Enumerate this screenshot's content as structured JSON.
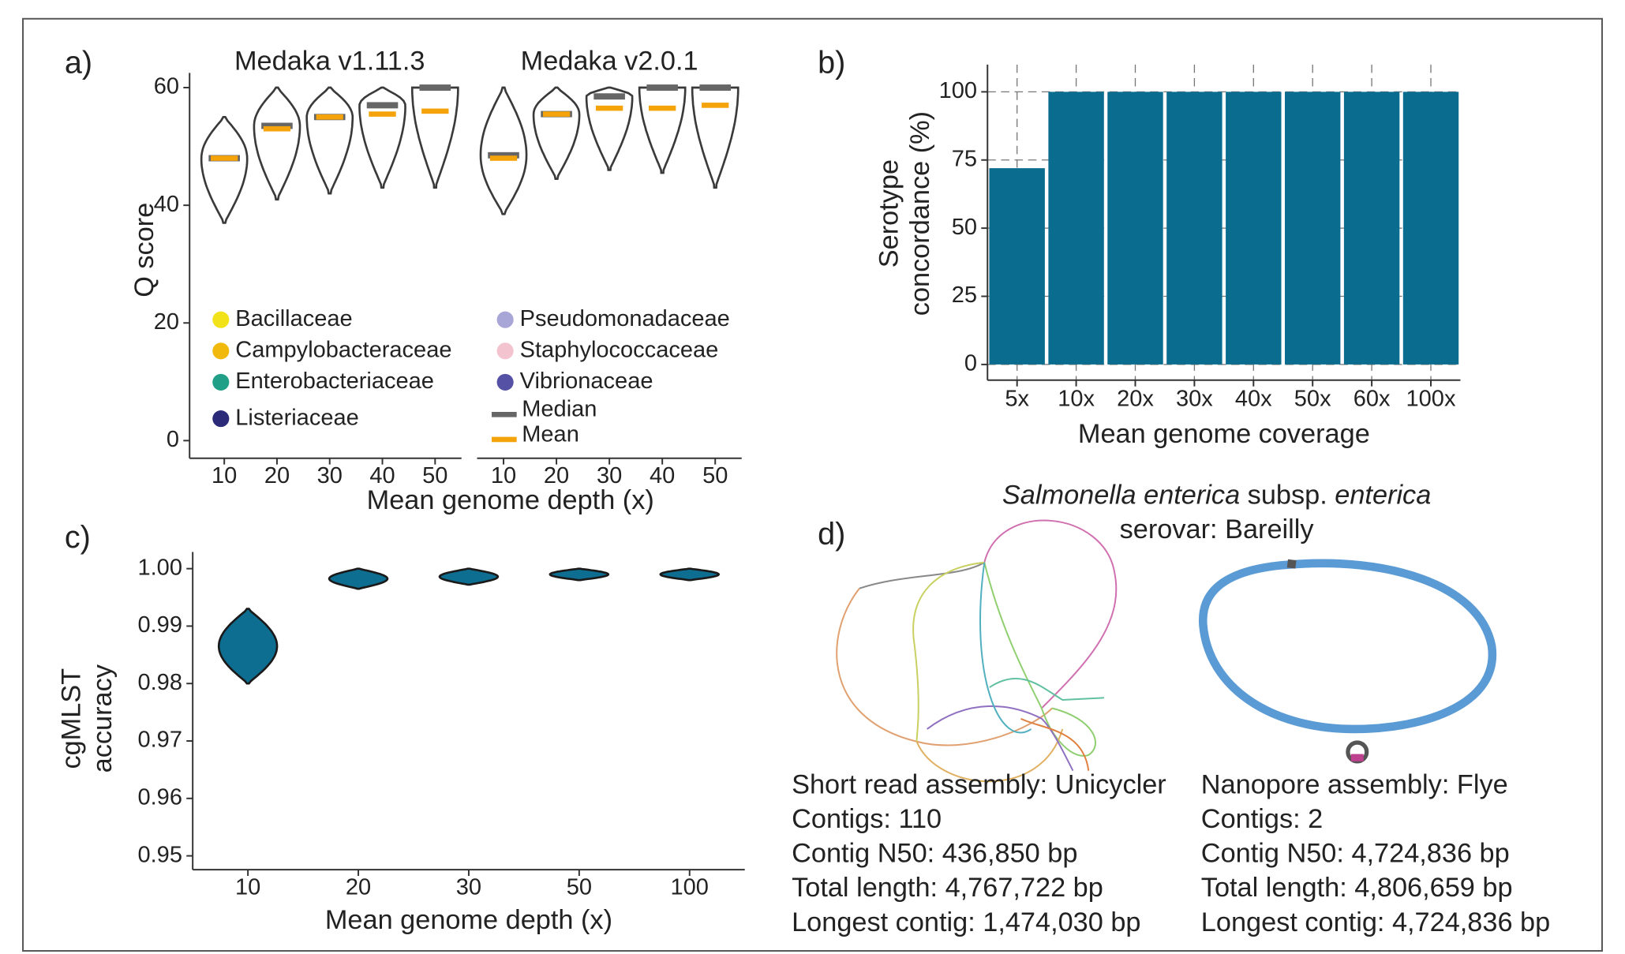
{
  "chart_data": [
    {
      "type": "violin",
      "panel_label": "a)",
      "facets": [
        {
          "title": "Medaka v1.11.3",
          "categories": [
            "10",
            "20",
            "30",
            "40",
            "50"
          ],
          "min": [
            37,
            41,
            42,
            43,
            43
          ],
          "max": [
            55,
            60,
            60,
            60,
            60
          ],
          "median": [
            48,
            53.5,
            55,
            57,
            60
          ],
          "mean": [
            48,
            53,
            55,
            55.5,
            56
          ]
        },
        {
          "title": "Medaka v2.0.1",
          "categories": [
            "10",
            "20",
            "30",
            "40",
            "50"
          ],
          "min": [
            38.5,
            44.5,
            46,
            45.5,
            43
          ],
          "max": [
            60,
            60,
            60,
            60,
            60
          ],
          "median": [
            48.5,
            55.5,
            58.5,
            60,
            60
          ],
          "mean": [
            48,
            55.5,
            56.5,
            56.5,
            57
          ]
        }
      ],
      "xlabel": "Mean genome depth (x)",
      "ylabel": "Q score",
      "ylim": [
        -3,
        62.5
      ],
      "yticks": [
        0,
        20,
        40,
        60
      ],
      "outline_color": "#3a3a3a",
      "legend": {
        "families": [
          {
            "name": "Bacillaceae",
            "color": "#f2e21a"
          },
          {
            "name": "Campylobacteraceae",
            "color": "#f0b90c"
          },
          {
            "name": "Enterobacteriaceae",
            "color": "#21a087"
          },
          {
            "name": "Listeriaceae",
            "color": "#2b2a78"
          },
          {
            "name": "Pseudomonadaceae",
            "color": "#a7a6d6"
          },
          {
            "name": "Staphylococcaceae",
            "color": "#f3c3cf"
          },
          {
            "name": "Vibrionaceae",
            "color": "#5552a6"
          }
        ],
        "median": {
          "name": "Median",
          "color": "#666666"
        },
        "mean": {
          "name": "Mean",
          "color": "#f5a30a"
        }
      }
    },
    {
      "type": "bar",
      "panel_label": "b)",
      "categories": [
        "5x",
        "10x",
        "20x",
        "30x",
        "40x",
        "50x",
        "60x",
        "100x"
      ],
      "values": [
        72,
        100,
        100,
        100,
        100,
        100,
        100,
        100
      ],
      "color": "#0a6d8f",
      "xlabel": "Mean genome coverage",
      "ylabel": [
        "Serotype",
        "concordance (%)"
      ],
      "ylim": [
        -5.75,
        110
      ],
      "yticks": [
        0,
        25,
        50,
        75,
        100
      ],
      "grid": true
    },
    {
      "type": "violin",
      "panel_label": "c)",
      "facets": [
        {
          "categories": [
            "10",
            "20",
            "30",
            "50",
            "100"
          ],
          "min": [
            0.98,
            0.9965,
            0.9972,
            0.998,
            0.998
          ],
          "max": [
            0.993,
            1.0,
            1.0,
            1.0,
            1.0
          ]
        }
      ],
      "xlabel": "Mean genome depth (x)",
      "ylabel": [
        "cgMLST",
        "accuracy"
      ],
      "ylim": [
        0.9476,
        1.0029
      ],
      "yticks": [
        0.95,
        0.96,
        0.97,
        0.98,
        0.99,
        {
          "value": 1,
          "label": "1.00"
        }
      ],
      "color": "#0e6e91",
      "outline_color": "#1a1a1a"
    }
  ],
  "assembly_panel": {
    "panel_label": "d)",
    "title": [
      [
        "Salmonella enterica",
        " subsp. ",
        "enterica"
      ],
      "serovar: Bareilly"
    ],
    "assemblies": [
      {
        "lines": [
          "Short read assembly: Unicycler",
          "Contigs: 110",
          "Contig N50: 436,850 bp",
          "Total length: 4,767,722 bp",
          "Longest contig: 1,474,030 bp"
        ]
      },
      {
        "lines": [
          "Nanopore assembly: Flye",
          "Contigs: 2",
          "Contig N50: 4,724,836 bp",
          "Total length: 4,806,659 bp",
          "Longest contig: 4,724,836 bp"
        ]
      }
    ]
  }
}
